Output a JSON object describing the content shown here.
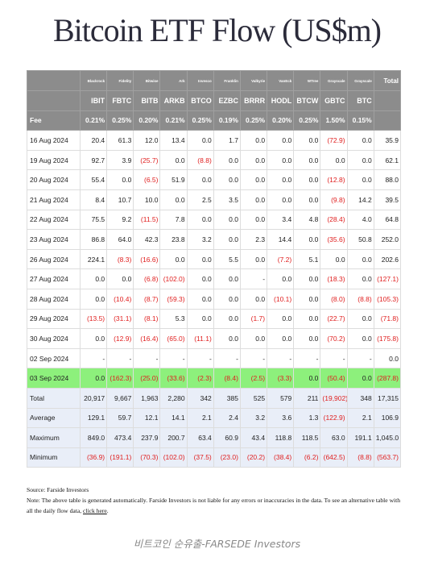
{
  "title": "Bitcoin ETF Flow (US$m)",
  "table": {
    "issuers": [
      "Blackrock",
      "Fidelity",
      "Bitwise",
      "Ark",
      "Invesco",
      "Franklin",
      "Valkyrie",
      "VanEck",
      "WTree",
      "Grayscale",
      "Grayscale",
      "Total"
    ],
    "tickers": [
      "IBIT",
      "FBTC",
      "BITB",
      "ARKB",
      "BTCO",
      "EZBC",
      "BRRR",
      "HODL",
      "BTCW",
      "GBTC",
      "BTC"
    ],
    "fee": {
      "label": "Fee",
      "values": [
        "0.21%",
        "0.25%",
        "0.20%",
        "0.21%",
        "0.25%",
        "0.19%",
        "0.25%",
        "0.20%",
        "0.25%",
        "1.50%",
        "0.15%"
      ]
    },
    "rows": [
      [
        "16 Aug 2024",
        "20.4",
        "61.3",
        "12.0",
        "13.4",
        "0.0",
        "1.7",
        "0.0",
        "0.0",
        "0.0",
        "(72.9)",
        "0.0",
        "35.9"
      ],
      [
        "19 Aug 2024",
        "92.7",
        "3.9",
        "(25.7)",
        "0.0",
        "(8.8)",
        "0.0",
        "0.0",
        "0.0",
        "0.0",
        "0.0",
        "0.0",
        "62.1"
      ],
      [
        "20 Aug 2024",
        "55.4",
        "0.0",
        "(6.5)",
        "51.9",
        "0.0",
        "0.0",
        "0.0",
        "0.0",
        "0.0",
        "(12.8)",
        "0.0",
        "88.0"
      ],
      [
        "21 Aug 2024",
        "8.4",
        "10.7",
        "10.0",
        "0.0",
        "2.5",
        "3.5",
        "0.0",
        "0.0",
        "0.0",
        "(9.8)",
        "14.2",
        "39.5"
      ],
      [
        "22 Aug 2024",
        "75.5",
        "9.2",
        "(11.5)",
        "7.8",
        "0.0",
        "0.0",
        "0.0",
        "3.4",
        "4.8",
        "(28.4)",
        "4.0",
        "64.8"
      ],
      [
        "23 Aug 2024",
        "86.8",
        "64.0",
        "42.3",
        "23.8",
        "3.2",
        "0.0",
        "2.3",
        "14.4",
        "0.0",
        "(35.6)",
        "50.8",
        "252.0"
      ],
      [
        "26 Aug 2024",
        "224.1",
        "(8.3)",
        "(16.6)",
        "0.0",
        "0.0",
        "5.5",
        "0.0",
        "(7.2)",
        "5.1",
        "0.0",
        "0.0",
        "202.6"
      ],
      [
        "27 Aug 2024",
        "0.0",
        "0.0",
        "(6.8)",
        "(102.0)",
        "0.0",
        "0.0",
        "-",
        "0.0",
        "0.0",
        "(18.3)",
        "0.0",
        "(127.1)"
      ],
      [
        "28 Aug 2024",
        "0.0",
        "(10.4)",
        "(8.7)",
        "(59.3)",
        "0.0",
        "0.0",
        "0.0",
        "(10.1)",
        "0.0",
        "(8.0)",
        "(8.8)",
        "(105.3)"
      ],
      [
        "29 Aug 2024",
        "(13.5)",
        "(31.1)",
        "(8.1)",
        "5.3",
        "0.0",
        "0.0",
        "(1.7)",
        "0.0",
        "0.0",
        "(22.7)",
        "0.0",
        "(71.8)"
      ],
      [
        "30 Aug 2024",
        "0.0",
        "(12.9)",
        "(16.4)",
        "(65.0)",
        "(11.1)",
        "0.0",
        "0.0",
        "0.0",
        "0.0",
        "(70.2)",
        "0.0",
        "(175.8)"
      ],
      [
        "02 Sep 2024",
        "-",
        "-",
        "-",
        "-",
        "-",
        "-",
        "-",
        "-",
        "-",
        "-",
        "-",
        "0.0"
      ],
      [
        "03 Sep 2024",
        "0.0",
        "(162.3)",
        "(25.0)",
        "(33.6)",
        "(2.3)",
        "(8.4)",
        "(2.5)",
        "(3.3)",
        "0.0",
        "(50.4)",
        "0.0",
        "(287.8)"
      ]
    ],
    "highlight_row": 12,
    "summary": [
      [
        "Total",
        "20,917",
        "9,667",
        "1,963",
        "2,280",
        "342",
        "385",
        "525",
        "579",
        "211",
        "(19,902)",
        "348",
        "17,315"
      ],
      [
        "Average",
        "129.1",
        "59.7",
        "12.1",
        "14.1",
        "2.1",
        "2.4",
        "3.2",
        "3.6",
        "1.3",
        "(122.9)",
        "2.1",
        "106.9"
      ],
      [
        "Maximum",
        "849.0",
        "473.4",
        "237.9",
        "200.7",
        "63.4",
        "60.9",
        "43.4",
        "118.8",
        "118.5",
        "63.0",
        "191.1",
        "1,045.0"
      ],
      [
        "Minimum",
        "(36.9)",
        "(191.1)",
        "(70.3)",
        "(102.0)",
        "(37.5)",
        "(23.0)",
        "(20.2)",
        "(38.4)",
        "(6.2)",
        "(642.5)",
        "(8.8)",
        "(563.7)"
      ]
    ]
  },
  "footer": {
    "source": "Source: Farside Investors",
    "note": "Note: The above table is generated automatically. Farside Investors is not liable for any errors or inaccuracies in the data. To see an alternative table with all the daily flow data, ",
    "link": "click here",
    "note_end": "."
  },
  "caption": "비트코인 순유출-FARSEDE Investors"
}
